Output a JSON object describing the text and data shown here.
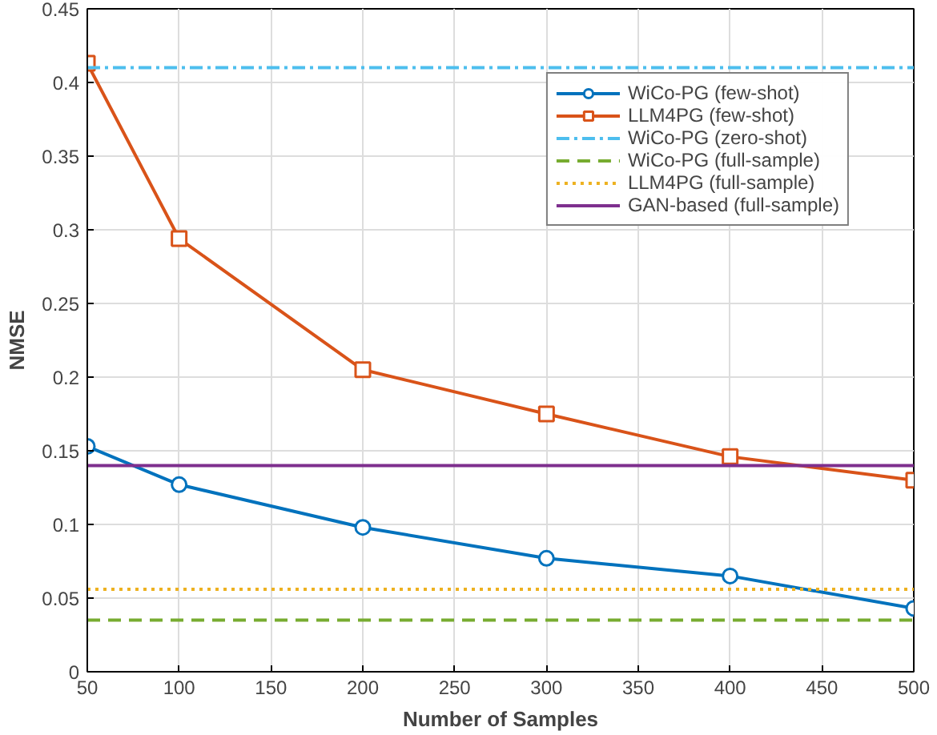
{
  "chart_data": {
    "type": "line",
    "xlabel": "Number of Samples",
    "ylabel": "NMSE",
    "xlim": [
      50,
      500
    ],
    "xticks": [
      50,
      100,
      150,
      200,
      250,
      300,
      350,
      400,
      450,
      500
    ],
    "ylim": [
      0,
      0.45
    ],
    "yticks": [
      0,
      0.05,
      0.1,
      0.15,
      0.2,
      0.25,
      0.3,
      0.35,
      0.4,
      0.45
    ],
    "grid": true,
    "legend": "top right",
    "series": [
      {
        "name": "WiCo-PG (few-shot)",
        "color": "#0072bd",
        "marker": "circle",
        "line_style": "solid",
        "x": [
          50,
          100,
          200,
          300,
          400,
          500
        ],
        "values": [
          0.153,
          0.127,
          0.098,
          0.077,
          0.065,
          0.043
        ]
      },
      {
        "name": "LLM4PG (few-shot)",
        "color": "#d95319",
        "marker": "square",
        "line_style": "solid",
        "x": [
          50,
          100,
          200,
          300,
          400,
          500
        ],
        "values": [
          0.413,
          0.294,
          0.205,
          0.175,
          0.146,
          0.13
        ]
      },
      {
        "name": "WiCo-PG (zero-shot)",
        "color": "#4dbeee",
        "marker": "none",
        "line_style": "dashdot",
        "x": [
          50,
          500
        ],
        "values": [
          0.41,
          0.41
        ]
      },
      {
        "name": "WiCo-PG (full-sample)",
        "color": "#77ac30",
        "marker": "none",
        "line_style": "dashed",
        "x": [
          50,
          500
        ],
        "values": [
          0.035,
          0.035
        ]
      },
      {
        "name": "LLM4PG (full-sample)",
        "color": "#edb120",
        "marker": "none",
        "line_style": "dotted",
        "x": [
          50,
          500
        ],
        "values": [
          0.056,
          0.056
        ]
      },
      {
        "name": "GAN-based (full-sample)",
        "color": "#7e2f8e",
        "marker": "none",
        "line_style": "solid",
        "x": [
          50,
          500
        ],
        "values": [
          0.14,
          0.14
        ]
      }
    ]
  }
}
